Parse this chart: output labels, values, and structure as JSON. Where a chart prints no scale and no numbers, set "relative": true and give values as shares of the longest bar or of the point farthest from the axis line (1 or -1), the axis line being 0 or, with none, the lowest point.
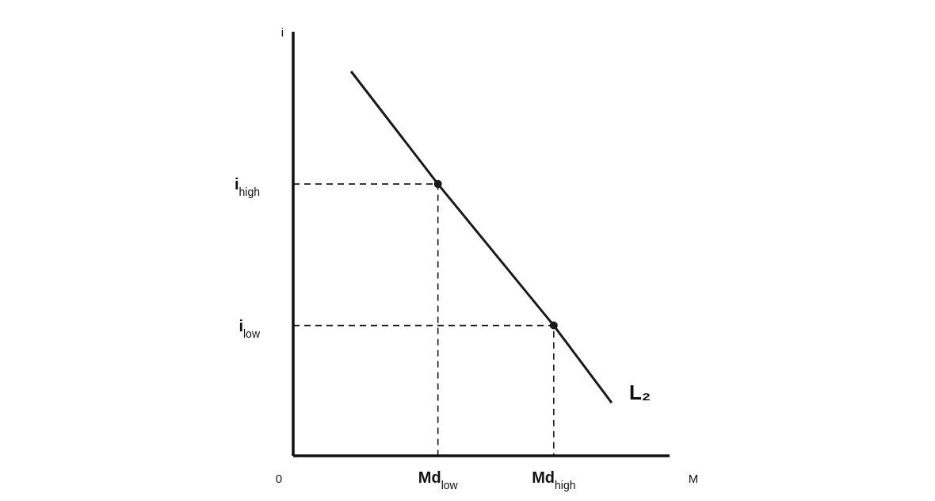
{
  "chart_data": {
    "type": "line",
    "relative": true,
    "xlabel": "M",
    "ylabel": "i",
    "categories": [
      "0",
      null,
      null,
      null,
      null,
      "Md$_{low}$",
      null,
      null,
      null,
      "Md$_{high}$",
      null,
      null,
      null,
      null
    ],
    "series": [
      {
        "name": "L₂",
        "color": "#1a1a1a",
        "values": [
          null,
          null,
          1,
          null,
          null,
          0.707,
          null,
          null,
          null,
          0.339,
          null,
          0.138,
          null,
          null
        ]
      },
      {
        "name": "i$_{high}$",
        "color": "#1a1a1a",
        "line_style": "dashed",
        "x": [
          "0",
          "Md$_{low}$",
          "Md$_{low}$"
        ],
        "values": [
          0.707,
          0.707,
          0
        ]
      },
      {
        "name": "i$_{low}$",
        "color": "#1a1a1a",
        "line_style": "dashed",
        "x": [
          "0",
          "Md$_{high}$",
          "Md$_{high}$"
        ],
        "values": [
          0.339,
          0.339,
          0
        ]
      },
      {
        "type": "scatter",
        "color": "#1a1a1a",
        "marker": "circle",
        "x": [
          "Md$_{low}$",
          "Md$_{high}$"
        ],
        "values": [
          0.707,
          0.339
        ]
      }
    ]
  }
}
